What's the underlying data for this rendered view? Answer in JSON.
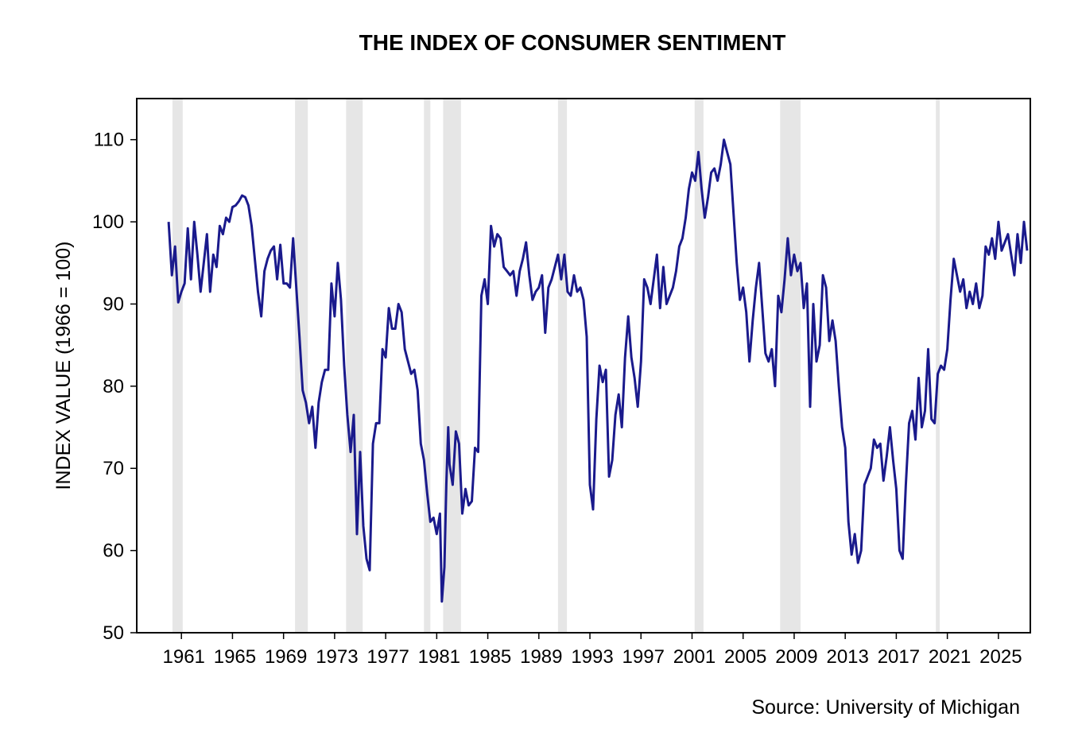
{
  "title": "THE INDEX OF CONSUMER SENTIMENT",
  "source": "Source: University of Michigan",
  "colors": {
    "line": "#1a1a8c",
    "recession_band": "#e6e6e6",
    "axis": "#000000"
  },
  "chart_data": {
    "type": "line",
    "title": "THE INDEX OF CONSUMER SENTIMENT",
    "xlabel": "",
    "ylabel": "INDEX VALUE (1966 = 100)",
    "xlim": [
      1957.5,
      2027.5
    ],
    "ylim": [
      50,
      115
    ],
    "x_ticks": [
      "1961",
      "1965",
      "1969",
      "1973",
      "1977",
      "1981",
      "1985",
      "1989",
      "1993",
      "1997",
      "2001",
      "2005",
      "2009",
      "2013",
      "2017",
      "2021",
      "2025"
    ],
    "y_ticks": [
      50,
      60,
      70,
      80,
      90,
      100,
      110
    ],
    "grid": false,
    "legend": "none",
    "recessions": [
      [
        1960.3,
        1961.1
      ],
      [
        1969.9,
        1970.9
      ],
      [
        1973.9,
        1975.2
      ],
      [
        1980.0,
        1980.5
      ],
      [
        1981.5,
        1982.9
      ],
      [
        1990.5,
        1991.2
      ],
      [
        2001.2,
        2001.9
      ],
      [
        2007.9,
        2009.5
      ],
      [
        2020.1,
        2020.4
      ]
    ],
    "series": [
      {
        "values": [
          [
            1960.0,
            100
          ],
          [
            1960.25,
            93.5
          ],
          [
            1960.5,
            97
          ],
          [
            1960.75,
            90.2
          ],
          [
            1961.0,
            91.5
          ],
          [
            1961.25,
            92.5
          ],
          [
            1961.5,
            99.2
          ],
          [
            1961.75,
            93
          ],
          [
            1962.0,
            100
          ],
          [
            1962.25,
            96
          ],
          [
            1962.5,
            91.5
          ],
          [
            1962.75,
            95
          ],
          [
            1963.0,
            98.5
          ],
          [
            1963.25,
            91.5
          ],
          [
            1963.5,
            96
          ],
          [
            1963.75,
            94.5
          ],
          [
            1964.0,
            99.5
          ],
          [
            1964.25,
            98.5
          ],
          [
            1964.5,
            100.5
          ],
          [
            1964.75,
            100
          ],
          [
            1965.0,
            101.8
          ],
          [
            1965.25,
            102
          ],
          [
            1965.5,
            102.5
          ],
          [
            1965.75,
            103.2
          ],
          [
            1966.0,
            103
          ],
          [
            1966.25,
            102
          ],
          [
            1966.5,
            99.5
          ],
          [
            1966.75,
            95.5
          ],
          [
            1967.0,
            91.5
          ],
          [
            1967.25,
            88.5
          ],
          [
            1967.5,
            94
          ],
          [
            1967.75,
            95.5
          ],
          [
            1968.0,
            96.5
          ],
          [
            1968.25,
            97
          ],
          [
            1968.5,
            93
          ],
          [
            1968.75,
            97.2
          ],
          [
            1969.0,
            92.5
          ],
          [
            1969.25,
            92.5
          ],
          [
            1969.5,
            92
          ],
          [
            1969.75,
            98
          ],
          [
            1970.0,
            92
          ],
          [
            1970.25,
            86
          ],
          [
            1970.5,
            79.5
          ],
          [
            1970.75,
            78
          ],
          [
            1971.0,
            75.5
          ],
          [
            1971.25,
            77.5
          ],
          [
            1971.5,
            72.5
          ],
          [
            1971.75,
            78
          ],
          [
            1972.0,
            80.5
          ],
          [
            1972.25,
            82
          ],
          [
            1972.5,
            82
          ],
          [
            1972.75,
            92.5
          ],
          [
            1973.0,
            88.5
          ],
          [
            1973.25,
            95
          ],
          [
            1973.5,
            90.5
          ],
          [
            1973.75,
            82.5
          ],
          [
            1974.0,
            76.5
          ],
          [
            1974.25,
            72
          ],
          [
            1974.5,
            76.5
          ],
          [
            1974.75,
            62
          ],
          [
            1975.0,
            72
          ],
          [
            1975.25,
            63
          ],
          [
            1975.5,
            59
          ],
          [
            1975.75,
            57.6
          ],
          [
            1976.0,
            73
          ],
          [
            1976.25,
            75.5
          ],
          [
            1976.5,
            75.5
          ],
          [
            1976.75,
            84.5
          ],
          [
            1977.0,
            83.5
          ],
          [
            1977.25,
            89.5
          ],
          [
            1977.5,
            87
          ],
          [
            1977.75,
            87
          ],
          [
            1978.0,
            90
          ],
          [
            1978.25,
            89
          ],
          [
            1978.5,
            84.5
          ],
          [
            1978.75,
            83
          ],
          [
            1979.0,
            81.5
          ],
          [
            1979.25,
            82
          ],
          [
            1979.5,
            79.5
          ],
          [
            1979.75,
            73
          ],
          [
            1980.0,
            71
          ],
          [
            1980.25,
            67
          ],
          [
            1980.5,
            63.5
          ],
          [
            1980.75,
            64
          ],
          [
            1981.0,
            62
          ],
          [
            1981.25,
            64.5
          ],
          [
            1981.4,
            53.8
          ],
          [
            1981.6,
            58
          ],
          [
            1981.75,
            68
          ],
          [
            1981.9,
            75
          ],
          [
            1982.0,
            70.5
          ],
          [
            1982.25,
            68
          ],
          [
            1982.5,
            74.5
          ],
          [
            1982.75,
            73
          ],
          [
            1983.0,
            64.5
          ],
          [
            1983.25,
            67.5
          ],
          [
            1983.5,
            65.5
          ],
          [
            1983.75,
            66
          ],
          [
            1984.0,
            72.5
          ],
          [
            1984.25,
            72
          ],
          [
            1984.5,
            91
          ],
          [
            1984.75,
            93
          ],
          [
            1985.0,
            90
          ],
          [
            1985.25,
            99.5
          ],
          [
            1985.5,
            97
          ],
          [
            1985.75,
            98.5
          ],
          [
            1986.0,
            98
          ],
          [
            1986.25,
            94.5
          ],
          [
            1986.5,
            94
          ],
          [
            1986.75,
            93.5
          ],
          [
            1987.0,
            94
          ],
          [
            1987.25,
            91
          ],
          [
            1987.5,
            94
          ],
          [
            1987.75,
            95.5
          ],
          [
            1988.0,
            97.5
          ],
          [
            1988.25,
            93.5
          ],
          [
            1988.5,
            90.5
          ],
          [
            1988.75,
            91.5
          ],
          [
            1989.0,
            92
          ],
          [
            1989.25,
            93.5
          ],
          [
            1989.5,
            86.5
          ],
          [
            1989.75,
            92
          ],
          [
            1990.0,
            93
          ],
          [
            1990.25,
            94.5
          ],
          [
            1990.5,
            96
          ],
          [
            1990.75,
            93
          ],
          [
            1991.0,
            96
          ],
          [
            1991.25,
            91.5
          ],
          [
            1991.5,
            91
          ],
          [
            1991.75,
            93.5
          ],
          [
            1992.0,
            91.5
          ],
          [
            1992.25,
            92
          ],
          [
            1992.5,
            90.5
          ],
          [
            1992.75,
            86
          ],
          [
            1993.0,
            68
          ],
          [
            1993.25,
            65
          ],
          [
            1993.5,
            76
          ],
          [
            1993.75,
            82.5
          ],
          [
            1994.0,
            80.5
          ],
          [
            1994.25,
            82
          ],
          [
            1994.5,
            69
          ],
          [
            1994.75,
            71
          ],
          [
            1995.0,
            76.5
          ],
          [
            1995.25,
            79
          ],
          [
            1995.5,
            75
          ],
          [
            1995.75,
            83.5
          ],
          [
            1996.0,
            88.5
          ],
          [
            1996.25,
            83.5
          ],
          [
            1996.5,
            81
          ],
          [
            1996.75,
            77.5
          ],
          [
            1997.0,
            83
          ],
          [
            1997.25,
            93
          ],
          [
            1997.5,
            92
          ],
          [
            1997.75,
            90
          ],
          [
            1998.0,
            93
          ],
          [
            1998.25,
            96
          ],
          [
            1998.5,
            89.5
          ],
          [
            1998.75,
            94.5
          ],
          [
            1999.0,
            90
          ],
          [
            1999.25,
            91
          ],
          [
            1999.5,
            92
          ],
          [
            1999.75,
            94
          ],
          [
            2000.0,
            97
          ],
          [
            2000.25,
            98
          ],
          [
            2000.5,
            100.5
          ],
          [
            2000.75,
            104
          ],
          [
            2001.0,
            106
          ],
          [
            2001.25,
            105
          ],
          [
            2001.5,
            108.5
          ],
          [
            2001.75,
            104
          ],
          [
            2002.0,
            100.5
          ],
          [
            2002.25,
            103
          ],
          [
            2002.5,
            106
          ],
          [
            2002.75,
            106.5
          ],
          [
            2003.0,
            105
          ],
          [
            2003.25,
            107
          ],
          [
            2003.5,
            110
          ],
          [
            2003.75,
            108.5
          ],
          [
            2004.0,
            107
          ],
          [
            2004.25,
            101
          ],
          [
            2004.5,
            95
          ],
          [
            2004.75,
            90.5
          ],
          [
            2005.0,
            92
          ],
          [
            2005.25,
            89
          ],
          [
            2005.5,
            83
          ],
          [
            2005.75,
            88
          ],
          [
            2006.0,
            92
          ],
          [
            2006.25,
            95
          ],
          [
            2006.5,
            89.5
          ],
          [
            2006.75,
            84
          ],
          [
            2007.0,
            83
          ],
          [
            2007.25,
            84.5
          ],
          [
            2007.5,
            80
          ],
          [
            2007.75,
            91
          ],
          [
            2008.0,
            89
          ],
          [
            2008.25,
            93
          ],
          [
            2008.5,
            98
          ],
          [
            2008.75,
            93.5
          ],
          [
            2009.0,
            96
          ],
          [
            2009.25,
            94
          ],
          [
            2009.5,
            95
          ],
          [
            2009.75,
            89.5
          ],
          [
            2010.0,
            92.5
          ],
          [
            2010.25,
            77.5
          ],
          [
            2010.5,
            90
          ],
          [
            2010.75,
            83
          ],
          [
            2011.0,
            85
          ],
          [
            2011.25,
            93.5
          ],
          [
            2011.5,
            92
          ],
          [
            2011.75,
            85.5
          ],
          [
            2012.0,
            88
          ],
          [
            2012.25,
            85.5
          ],
          [
            2012.5,
            80
          ],
          [
            2012.75,
            75
          ],
          [
            2013.0,
            72.5
          ],
          [
            2013.25,
            63.5
          ],
          [
            2013.5,
            59.5
          ],
          [
            2013.75,
            62
          ],
          [
            2014.0,
            58.5
          ],
          [
            2014.25,
            60
          ],
          [
            2014.5,
            68
          ],
          [
            2014.75,
            69
          ],
          [
            2015.0,
            70
          ],
          [
            2015.25,
            73.5
          ],
          [
            2015.5,
            72.5
          ],
          [
            2015.75,
            73
          ],
          [
            2016.0,
            68.5
          ],
          [
            2016.25,
            71.5
          ],
          [
            2016.5,
            75
          ],
          [
            2016.75,
            71
          ],
          [
            2017.0,
            67.5
          ],
          [
            2017.25,
            60
          ],
          [
            2017.5,
            59
          ],
          [
            2017.75,
            68
          ],
          [
            2018.0,
            75.5
          ],
          [
            2018.25,
            77
          ],
          [
            2018.5,
            73.5
          ],
          [
            2018.75,
            81
          ],
          [
            2019.0,
            75
          ],
          [
            2019.25,
            77
          ],
          [
            2019.5,
            84.5
          ],
          [
            2019.75,
            76
          ],
          [
            2020.0,
            75.5
          ],
          [
            2020.25,
            81.5
          ],
          [
            2020.5,
            82.5
          ],
          [
            2020.75,
            82
          ],
          [
            2021.0,
            84.5
          ],
          [
            2021.25,
            90.5
          ],
          [
            2021.5,
            95.5
          ],
          [
            2021.75,
            93.5
          ],
          [
            2022.0,
            91.5
          ],
          [
            2022.25,
            93
          ],
          [
            2022.5,
            89.5
          ],
          [
            2022.75,
            91.5
          ],
          [
            2023.0,
            90
          ],
          [
            2023.25,
            92.5
          ],
          [
            2023.5,
            89.5
          ],
          [
            2023.75,
            91
          ],
          [
            2024.0,
            97
          ],
          [
            2024.25,
            96
          ],
          [
            2024.5,
            98
          ],
          [
            2024.75,
            95.5
          ],
          [
            2025.0,
            100
          ],
          [
            2025.25,
            96.5
          ],
          [
            2025.5,
            97.5
          ],
          [
            2025.75,
            98.5
          ],
          [
            2026.0,
            96
          ],
          [
            2026.25,
            93.5
          ],
          [
            2026.5,
            98.5
          ],
          [
            2026.75,
            95
          ],
          [
            2027.0,
            100
          ],
          [
            2027.25,
            96.5
          ]
        ]
      }
    ]
  }
}
